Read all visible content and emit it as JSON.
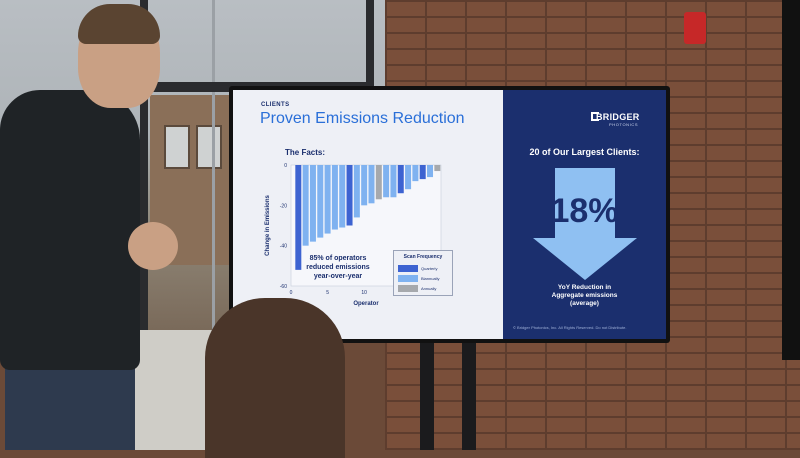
{
  "slide": {
    "section": "CLIENTS",
    "title": "Proven Emissions Reduction",
    "facts_label": "The Facts:",
    "callout_lines": [
      "85% of operators",
      "reduced emissions",
      "year-over-year"
    ],
    "legend": {
      "title": "Scan Frequency",
      "items": [
        {
          "label": "Quarterly",
          "color": "#3d63d1"
        },
        {
          "label": "Biannually",
          "color": "#7fb2f0"
        },
        {
          "label": "Annually",
          "color": "#a6a9ad"
        }
      ]
    }
  },
  "panel": {
    "logo": "BRIDGER",
    "logo_sub": "PHOTONICS",
    "heading": "20 of Our Largest Clients:",
    "stat": "18%",
    "caption_lines": [
      "YoY Reduction in",
      "Aggregate emissions",
      "(average)"
    ],
    "footer": "© Bridger Photonics, Inc. All Rights Reserved. Do not Distribute."
  },
  "chart_data": {
    "type": "bar",
    "xlabel": "Operator",
    "ylabel": "Change in Emissions",
    "ylim": [
      -60,
      0
    ],
    "xticks": [
      0,
      5,
      10
    ],
    "yticks": [
      0,
      -20,
      -40,
      -60
    ],
    "categories": [
      1,
      2,
      3,
      4,
      5,
      6,
      7,
      8,
      9,
      10,
      11,
      12,
      13,
      14,
      15,
      16,
      17,
      18,
      19,
      20
    ],
    "values": [
      -52,
      -40,
      -38,
      -36,
      -34,
      -32,
      -31,
      -30,
      -26,
      -20,
      -19,
      -17,
      -16,
      -16,
      -14,
      -12,
      -8,
      -7,
      -6,
      -3
    ],
    "frequency": [
      "Quarterly",
      "Biannually",
      "Biannually",
      "Biannually",
      "Biannually",
      "Biannually",
      "Biannually",
      "Quarterly",
      "Biannually",
      "Biannually",
      "Biannually",
      "Annually",
      "Biannually",
      "Biannually",
      "Quarterly",
      "Biannually",
      "Biannually",
      "Quarterly",
      "Biannually",
      "Annually"
    ]
  }
}
